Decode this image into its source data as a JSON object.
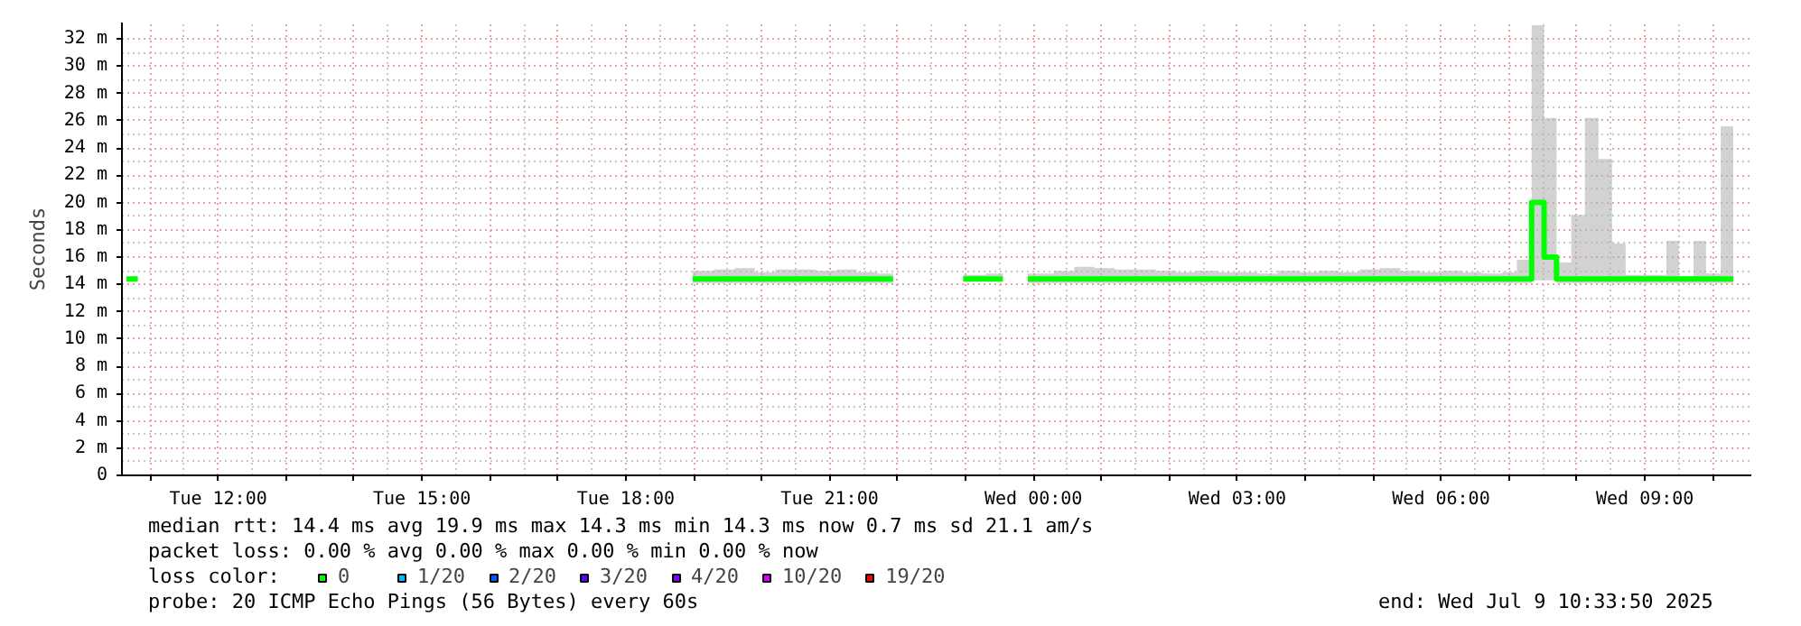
{
  "chart_data": {
    "type": "step",
    "ylabel": "Seconds",
    "legend_title": "loss color:",
    "legend": "bottom",
    "grid": true,
    "xlim": [
      "2025-07-08T10:35",
      "2025-07-09T10:34"
    ],
    "ylim": [
      0,
      33.2
    ],
    "xticks": [
      {
        "value": "2025-07-08T11:00",
        "label": null
      },
      {
        "value": "2025-07-08T12:00",
        "label": "Tue 12:00"
      },
      {
        "value": "2025-07-08T13:00",
        "label": null
      },
      {
        "value": "2025-07-08T14:00",
        "label": null
      },
      {
        "value": "2025-07-08T15:00",
        "label": "Tue 15:00"
      },
      {
        "value": "2025-07-08T16:00",
        "label": null
      },
      {
        "value": "2025-07-08T17:00",
        "label": null
      },
      {
        "value": "2025-07-08T18:00",
        "label": "Tue 18:00"
      },
      {
        "value": "2025-07-08T19:00",
        "label": null
      },
      {
        "value": "2025-07-08T20:00",
        "label": null
      },
      {
        "value": "2025-07-08T21:00",
        "label": "Tue 21:00"
      },
      {
        "value": "2025-07-08T22:00",
        "label": null
      },
      {
        "value": "2025-07-08T23:00",
        "label": null
      },
      {
        "value": "2025-07-09T00:00",
        "label": "Wed 00:00"
      },
      {
        "value": "2025-07-09T01:00",
        "label": null
      },
      {
        "value": "2025-07-09T02:00",
        "label": null
      },
      {
        "value": "2025-07-09T03:00",
        "label": "Wed 03:00"
      },
      {
        "value": "2025-07-09T04:00",
        "label": null
      },
      {
        "value": "2025-07-09T05:00",
        "label": null
      },
      {
        "value": "2025-07-09T06:00",
        "label": "Wed 06:00"
      },
      {
        "value": "2025-07-09T07:00",
        "label": null
      },
      {
        "value": "2025-07-09T08:00",
        "label": null
      },
      {
        "value": "2025-07-09T09:00",
        "label": "Wed 09:00"
      },
      {
        "value": "2025-07-09T10:00",
        "label": null
      }
    ],
    "yticks": [
      0,
      {
        "value": 2,
        "label": "2 m"
      },
      {
        "value": 4,
        "label": "4 m"
      },
      {
        "value": 6,
        "label": "6 m"
      },
      {
        "value": 8,
        "label": "8 m"
      },
      {
        "value": 10,
        "label": "10 m"
      },
      {
        "value": 12,
        "label": "12 m"
      },
      {
        "value": 14,
        "label": "14 m"
      },
      {
        "value": 16,
        "label": "16 m"
      },
      {
        "value": 18,
        "label": "18 m"
      },
      {
        "value": 20,
        "label": "20 m"
      },
      {
        "value": 22,
        "label": "22 m"
      },
      {
        "value": 24,
        "label": "24 m"
      },
      {
        "value": 26,
        "label": "26 m"
      },
      {
        "value": 28,
        "label": "28 m"
      },
      {
        "value": 30,
        "label": "30 m"
      },
      {
        "value": 32,
        "label": "32 m"
      }
    ],
    "annotations": [
      "median rtt:  14.4 ms avg  19.9 ms max  14.3 ms min  14.3 ms now  0.7 ms sd  21.1   am/s",
      "packet loss: 0.00 % avg  0.00 % max  0.00 % min  0.00 % now",
      "probe:       20 ICMP Echo Pings (56 Bytes) every 60s",
      "end: Wed Jul  9 10:33:50 2025"
    ],
    "series": [
      {
        "name": "0",
        "color": "#00ff00",
        "x": [
          "2025-07-08T10:39",
          "2025-07-08T10:49",
          "2025-07-08T10:55",
          "2025-07-08T18:59",
          "2025-07-08T19:18",
          "2025-07-08T19:36",
          "2025-07-08T19:54",
          "2025-07-08T20:12",
          "2025-07-08T20:30",
          "2025-07-08T20:48",
          "2025-07-08T21:06",
          "2025-07-08T21:24",
          "2025-07-08T21:42",
          "2025-07-08T21:56",
          "2025-07-08T21:57",
          "2025-07-08T22:58",
          "2025-07-08T23:18",
          "2025-07-08T23:33",
          "2025-07-08T23:36",
          "2025-07-08T23:55",
          "2025-07-09T00:18",
          "2025-07-09T00:36",
          "2025-07-09T00:54",
          "2025-07-09T01:12",
          "2025-07-09T01:30",
          "2025-07-09T01:48",
          "2025-07-09T02:06",
          "2025-07-09T02:24",
          "2025-07-09T02:42",
          "2025-07-09T03:00",
          "2025-07-09T03:18",
          "2025-07-09T03:36",
          "2025-07-09T03:54",
          "2025-07-09T04:12",
          "2025-07-09T04:30",
          "2025-07-09T04:48",
          "2025-07-09T05:06",
          "2025-07-09T05:24",
          "2025-07-09T05:42",
          "2025-07-09T06:00",
          "2025-07-09T06:18",
          "2025-07-09T06:36",
          "2025-07-09T06:54",
          "2025-07-09T07:07",
          "2025-07-09T07:20",
          "2025-07-09T07:31",
          "2025-07-09T07:42",
          "2025-07-09T07:55",
          "2025-07-09T08:07",
          "2025-07-09T08:19",
          "2025-07-09T08:31",
          "2025-07-09T08:43",
          "2025-07-09T09:19",
          "2025-07-09T09:30",
          "2025-07-09T09:43",
          "2025-07-09T09:54",
          "2025-07-09T10:07",
          "2025-07-09T10:18"
        ],
        "values": [
          14.4,
          14.4,
          null,
          14.4,
          14.4,
          14.4,
          14.4,
          14.4,
          14.4,
          14.4,
          14.4,
          14.4,
          14.4,
          14.4,
          null,
          14.4,
          14.4,
          14.4,
          null,
          14.4,
          14.4,
          14.4,
          14.4,
          14.4,
          14.4,
          14.4,
          14.4,
          14.4,
          14.4,
          14.4,
          14.4,
          14.4,
          14.4,
          14.4,
          14.4,
          14.4,
          14.4,
          14.4,
          14.4,
          14.4,
          14.4,
          14.4,
          14.4,
          14.4,
          20.0,
          16.0,
          14.4,
          14.4,
          14.4,
          14.4,
          14.4,
          14.4,
          14.4,
          14.4,
          14.4,
          14.4,
          14.4,
          14.4
        ],
        "lower": [
          null,
          null,
          null,
          14.1,
          14.1,
          14.1,
          14.1,
          14.1,
          14.1,
          14.1,
          14.1,
          14.1,
          14.1,
          14.1,
          null,
          14.2,
          14.2,
          14.2,
          null,
          14.1,
          14.1,
          14.1,
          14.1,
          14.1,
          14.1,
          14.1,
          14.1,
          14.1,
          14.1,
          14.1,
          14.1,
          14.1,
          14.1,
          14.1,
          14.1,
          14.1,
          14.1,
          14.1,
          14.1,
          14.1,
          14.1,
          14.1,
          14.1,
          14.1,
          14.3,
          14.3,
          14.1,
          14.1,
          14.1,
          14.1,
          14.1,
          14.1,
          14.1,
          14.1,
          14.1,
          14.1,
          14.1,
          14.1
        ],
        "upper": [
          null,
          null,
          null,
          15.0,
          15.1,
          15.2,
          14.9,
          15.1,
          15.1,
          15.0,
          15.1,
          14.9,
          14.8,
          14.8,
          null,
          14.7,
          14.8,
          14.8,
          null,
          14.8,
          15.0,
          15.3,
          15.2,
          15.1,
          15.1,
          15.0,
          14.9,
          15.0,
          14.9,
          14.9,
          14.8,
          15.0,
          14.9,
          15.0,
          14.9,
          15.1,
          15.2,
          15.0,
          14.9,
          15.0,
          14.9,
          14.8,
          14.9,
          15.8,
          33.0,
          26.2,
          15.6,
          19.1,
          26.2,
          23.2,
          17.0,
          14.7,
          17.2,
          14.6,
          17.2,
          14.8,
          25.6,
          25.6
        ]
      },
      {
        "name": "1/20",
        "color": "#00b8ff"
      },
      {
        "name": "2/20",
        "color": "#0059ff"
      },
      {
        "name": "3/20",
        "color": "#5e00ff"
      },
      {
        "name": "4/20",
        "color": "#7e00ff"
      },
      {
        "name": "10/20",
        "color": "#dd00ff"
      },
      {
        "name": "19/20",
        "color": "#ff0000"
      }
    ]
  }
}
